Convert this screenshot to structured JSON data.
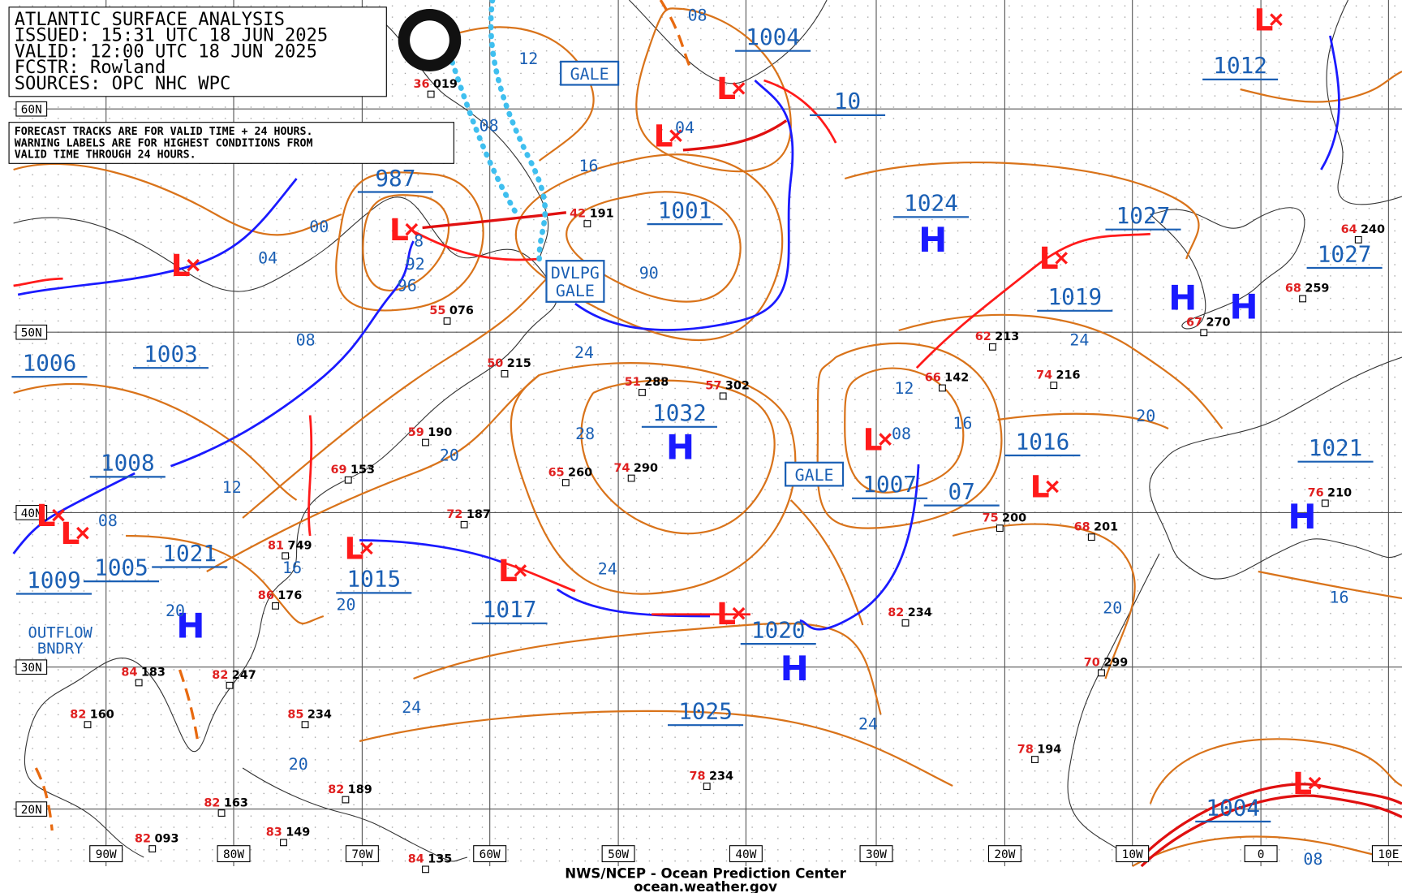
{
  "header": {
    "title": "ATLANTIC SURFACE ANALYSIS",
    "issued": "ISSUED: 15:31 UTC 18 JUN 2025",
    "valid": "VALID:  12:00 UTC 18 JUN 2025",
    "forecaster": "FCSTR:  Rowland",
    "sources": "SOURCES: OPC NHC WPC"
  },
  "notice": [
    "FORECAST TRACKS ARE FOR VALID TIME + 24 HOURS.",
    "WARNING LABELS ARE FOR HIGHEST CONDITIONS FROM",
    "VALID TIME THROUGH 24 HOURS."
  ],
  "latitudes": [
    "60N",
    "50N",
    "40N",
    "30N",
    "20N"
  ],
  "longitudes": [
    "90W",
    "80W",
    "70W",
    "60W",
    "50W",
    "40W",
    "30W",
    "20W",
    "10W",
    "0",
    "10E"
  ],
  "high_label": "H",
  "low_label": "L",
  "pressure_labels": [
    "987",
    "1001",
    "1004",
    "10",
    "1024",
    "1027",
    "1019",
    "1012",
    "1027",
    "1032",
    "1016",
    "1021",
    "1007",
    "07",
    "1020",
    "1025",
    "1017",
    "1015",
    "1021",
    "1005",
    "1009",
    "1008",
    "1006",
    "1003",
    "1004"
  ],
  "isobar_labels": [
    "12",
    "08",
    "08",
    "16",
    "00",
    "04",
    "92",
    "96",
    "90",
    "08",
    "24",
    "28",
    "24",
    "12",
    "08",
    "16",
    "20",
    "20",
    "16",
    "12",
    "08",
    "24",
    "20",
    "20",
    "16",
    "24",
    "24",
    "20",
    "08",
    "04",
    "20",
    "8"
  ],
  "warnings": [
    [
      "GALE"
    ],
    [
      "DVLPG",
      "GALE"
    ],
    [
      "GALE"
    ]
  ],
  "outflow": [
    "OUTFLOW",
    "BNDRY"
  ],
  "stations": [
    {
      "temp": "36",
      "pressure": "019"
    },
    {
      "temp": "55",
      "pressure": "076"
    },
    {
      "temp": "50",
      "pressure": "215"
    },
    {
      "temp": "51",
      "pressure": "288"
    },
    {
      "temp": "57",
      "pressure": "302"
    },
    {
      "temp": "65",
      "pressure": "260"
    },
    {
      "temp": "74",
      "pressure": "290"
    },
    {
      "temp": "72",
      "pressure": "187"
    },
    {
      "temp": "59",
      "pressure": "190"
    },
    {
      "temp": "69",
      "pressure": "153"
    },
    {
      "temp": "81",
      "pressure": "749"
    },
    {
      "temp": "86",
      "pressure": "176"
    },
    {
      "temp": "84",
      "pressure": "183"
    },
    {
      "temp": "82",
      "pressure": "247"
    },
    {
      "temp": "82",
      "pressure": "160"
    },
    {
      "temp": "85",
      "pressure": "234"
    },
    {
      "temp": "78",
      "pressure": "234"
    },
    {
      "temp": "82",
      "pressure": "163"
    },
    {
      "temp": "83",
      "pressure": "149"
    },
    {
      "temp": "82",
      "pressure": "093"
    },
    {
      "temp": "84",
      "pressure": "135"
    },
    {
      "temp": "62",
      "pressure": "213"
    },
    {
      "temp": "66",
      "pressure": "142"
    },
    {
      "temp": "74",
      "pressure": "216"
    },
    {
      "temp": "75",
      "pressure": "200"
    },
    {
      "temp": "68",
      "pressure": "201"
    },
    {
      "temp": "82",
      "pressure": "234"
    },
    {
      "temp": "70",
      "pressure": "299"
    },
    {
      "temp": "78",
      "pressure": "194"
    },
    {
      "temp": "76",
      "pressure": "210"
    },
    {
      "temp": "67",
      "pressure": "270"
    },
    {
      "temp": "68",
      "pressure": "259"
    },
    {
      "temp": "42",
      "pressure": "191"
    },
    {
      "temp": "64",
      "pressure": "240"
    },
    {
      "temp": "82",
      "pressure": "189"
    }
  ],
  "footer": [
    "NWS/NCEP - Ocean Prediction Center",
    "ocean.weather.gov"
  ]
}
